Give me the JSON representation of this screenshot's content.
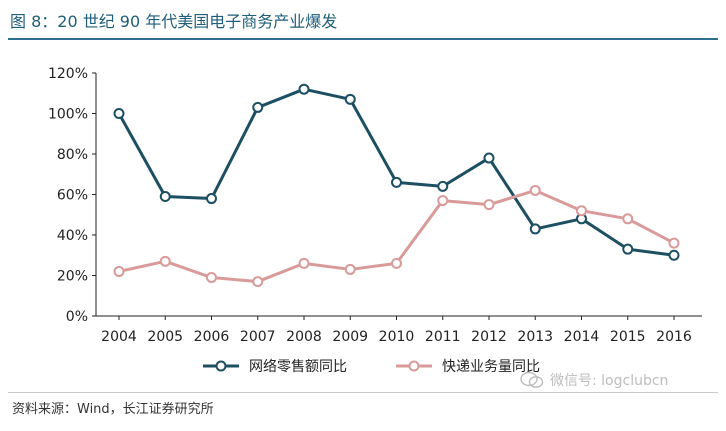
{
  "figure": {
    "title": "图 8：20 世纪 90 年代美国电子商务产业爆发",
    "source": "资料来源：Wind，长江证券研究所",
    "watermark": "微信号: logclubcn"
  },
  "colors": {
    "series_1": "#1d4f63",
    "series_2": "#d99a9a",
    "title": "#1f5e7a"
  },
  "chart_data": {
    "type": "line",
    "x": [
      "2004",
      "2005",
      "2006",
      "2007",
      "2008",
      "2009",
      "2010",
      "2011",
      "2012",
      "2013",
      "2014",
      "2015",
      "2016"
    ],
    "series": [
      {
        "name": "网络零售额同比",
        "values": [
          100,
          59,
          58,
          103,
          112,
          107,
          66,
          64,
          78,
          43,
          48,
          33,
          30
        ]
      },
      {
        "name": "快递业务量同比",
        "values": [
          22,
          27,
          19,
          17,
          26,
          23,
          26,
          57,
          55,
          62,
          52,
          48,
          36
        ]
      }
    ],
    "ylim": [
      0,
      120
    ],
    "yticks": [
      "0%",
      "20%",
      "40%",
      "60%",
      "80%",
      "100%",
      "120%"
    ],
    "grid": false,
    "legend": "bottom",
    "marker": "hollow-circle"
  }
}
